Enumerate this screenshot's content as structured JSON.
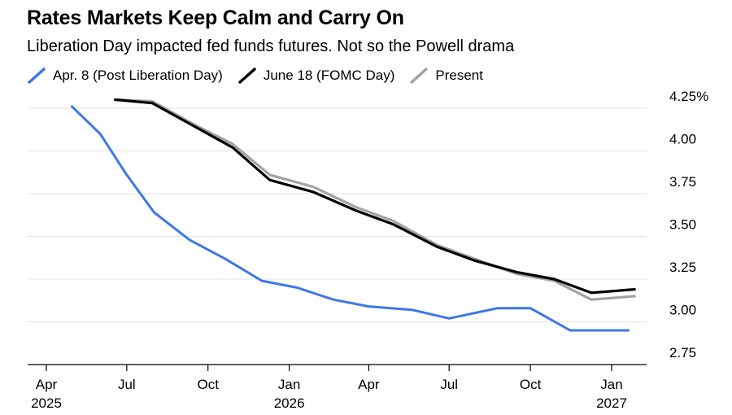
{
  "chart_data": {
    "type": "line",
    "title": "Rates Markets Keep Calm and Carry On",
    "subtitle": "Liberation Day impacted fed funds futures. Not so the Powell drama",
    "xlabel": "",
    "ylabel": "",
    "y_axis_position": "right",
    "y_unit_suffix": "%",
    "grid": true,
    "legend_position": "top-left",
    "ylim": [
      2.7,
      4.3
    ],
    "y_ticks": [
      {
        "value": 4.25,
        "label": "4.25%"
      },
      {
        "value": 4.0,
        "label": "4.00"
      },
      {
        "value": 3.75,
        "label": "3.75"
      },
      {
        "value": 3.5,
        "label": "3.50"
      },
      {
        "value": 3.25,
        "label": "3.25"
      },
      {
        "value": 3.0,
        "label": "3.00"
      },
      {
        "value": 2.75,
        "label": "2.75"
      }
    ],
    "x_ticks": [
      {
        "date": "2025-04",
        "label": "Apr",
        "sublabel": "2025"
      },
      {
        "date": "2025-07",
        "label": "Jul",
        "sublabel": ""
      },
      {
        "date": "2025-10",
        "label": "Oct",
        "sublabel": ""
      },
      {
        "date": "2026-01",
        "label": "Jan",
        "sublabel": "2026"
      },
      {
        "date": "2026-04",
        "label": "Apr",
        "sublabel": ""
      },
      {
        "date": "2026-07",
        "label": "Jul",
        "sublabel": ""
      },
      {
        "date": "2026-10",
        "label": "Oct",
        "sublabel": ""
      },
      {
        "date": "2027-01",
        "label": "Jan",
        "sublabel": "2027"
      }
    ],
    "series": [
      {
        "name": "Apr. 8 (Post Liberation Day)",
        "color": "#3c78e6",
        "points": [
          {
            "x": "2025-04-30",
            "y": 4.26
          },
          {
            "x": "2025-06-01",
            "y": 4.1
          },
          {
            "x": "2025-07-01",
            "y": 3.86
          },
          {
            "x": "2025-08-01",
            "y": 3.64
          },
          {
            "x": "2025-09-10",
            "y": 3.48
          },
          {
            "x": "2025-10-20",
            "y": 3.37
          },
          {
            "x": "2025-12-01",
            "y": 3.24
          },
          {
            "x": "2026-01-10",
            "y": 3.2
          },
          {
            "x": "2026-02-20",
            "y": 3.13
          },
          {
            "x": "2026-04-01",
            "y": 3.09
          },
          {
            "x": "2026-05-20",
            "y": 3.07
          },
          {
            "x": "2026-07-01",
            "y": 3.02
          },
          {
            "x": "2026-08-25",
            "y": 3.08
          },
          {
            "x": "2026-10-01",
            "y": 3.08
          },
          {
            "x": "2026-11-15",
            "y": 2.95
          },
          {
            "x": "2027-01-20",
            "y": 2.95
          }
        ]
      },
      {
        "name": "June 18 (FOMC Day)",
        "color": "#000000",
        "points": [
          {
            "x": "2025-06-18",
            "y": 4.3
          },
          {
            "x": "2025-07-30",
            "y": 4.28
          },
          {
            "x": "2025-09-17",
            "y": 4.14
          },
          {
            "x": "2025-10-29",
            "y": 4.02
          },
          {
            "x": "2025-12-10",
            "y": 3.83
          },
          {
            "x": "2026-01-28",
            "y": 3.76
          },
          {
            "x": "2026-03-18",
            "y": 3.65
          },
          {
            "x": "2026-04-29",
            "y": 3.57
          },
          {
            "x": "2026-06-17",
            "y": 3.44
          },
          {
            "x": "2026-07-29",
            "y": 3.36
          },
          {
            "x": "2026-09-16",
            "y": 3.29
          },
          {
            "x": "2026-10-28",
            "y": 3.25
          },
          {
            "x": "2026-12-09",
            "y": 3.17
          },
          {
            "x": "2027-01-27",
            "y": 3.19
          }
        ]
      },
      {
        "name": "Present",
        "color": "#a3a3a3",
        "points": [
          {
            "x": "2025-06-18",
            "y": 4.3
          },
          {
            "x": "2025-07-30",
            "y": 4.29
          },
          {
            "x": "2025-09-17",
            "y": 4.15
          },
          {
            "x": "2025-10-29",
            "y": 4.04
          },
          {
            "x": "2025-12-10",
            "y": 3.86
          },
          {
            "x": "2026-01-28",
            "y": 3.79
          },
          {
            "x": "2026-03-18",
            "y": 3.67
          },
          {
            "x": "2026-04-29",
            "y": 3.59
          },
          {
            "x": "2026-06-17",
            "y": 3.45
          },
          {
            "x": "2026-07-29",
            "y": 3.37
          },
          {
            "x": "2026-09-16",
            "y": 3.28
          },
          {
            "x": "2026-10-28",
            "y": 3.24
          },
          {
            "x": "2026-12-09",
            "y": 3.13
          },
          {
            "x": "2027-01-27",
            "y": 3.15
          }
        ]
      }
    ]
  }
}
